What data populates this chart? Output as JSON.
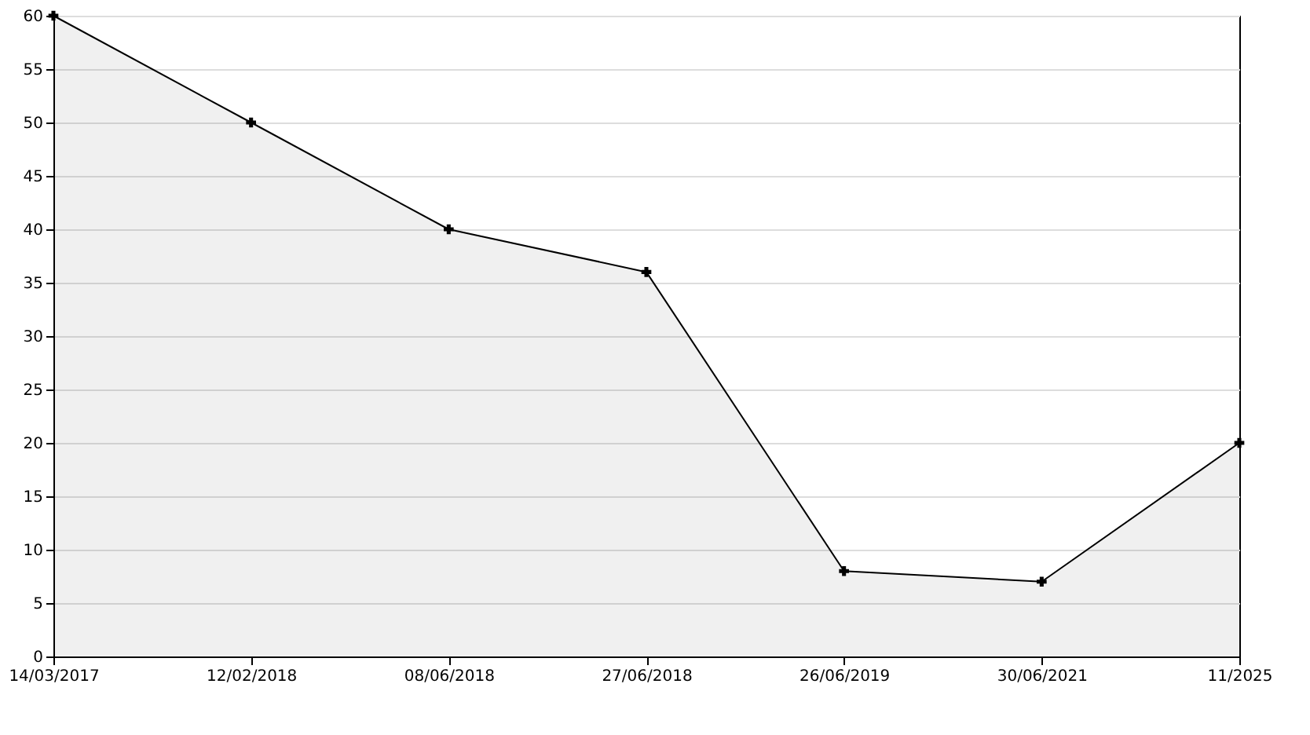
{
  "chart_data": {
    "type": "area",
    "categories": [
      "14/03/2017",
      "12/02/2018",
      "08/06/2018",
      "27/06/2018",
      "26/06/2019",
      "30/06/2021",
      "11/2025"
    ],
    "series": [
      {
        "color": "#000000",
        "values": [
          60,
          50,
          40,
          36,
          8,
          7,
          20
        ]
      }
    ],
    "ylim": [
      0,
      60
    ],
    "yticks": [
      0,
      5,
      10,
      15,
      20,
      25,
      30,
      35,
      40,
      45,
      50,
      55,
      60
    ],
    "grid": "y",
    "marker": "cross",
    "line_style": "solid"
  }
}
